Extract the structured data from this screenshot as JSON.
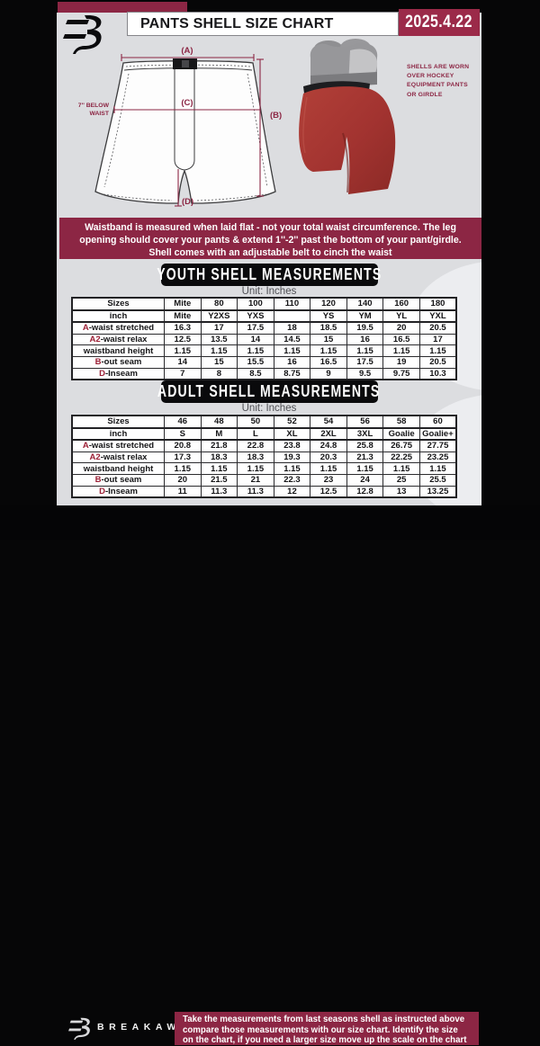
{
  "header": {
    "title": "PANTS SHELL SIZE CHART",
    "date": "2025.4.22"
  },
  "diagram": {
    "label_a": "(A)",
    "label_b": "(B)",
    "label_c": "(C)",
    "label_d": "(D)",
    "waist_note_line1": "7'' BELOW",
    "waist_note_line2": "WAIST"
  },
  "photo_note": {
    "lines": [
      "SHELLS ARE WORN",
      "OVER HOCKEY",
      "EQUIPMENT PANTS",
      "OR GIRDLE"
    ]
  },
  "banner": {
    "lines": [
      "Waistband is measured when laid flat - not your total waist circumference. The leg",
      "opening should cover your pants & extend 1''-2'' past the bottom of your pant/girdle.",
      "Shell comes with an adjustable belt to cinch the waist"
    ]
  },
  "youth": {
    "title": "YOUTH SHELL MEASUREMENTS",
    "unit": "Unit: Inches",
    "table": {
      "sizes_label": "Sizes",
      "inch_label": "inch",
      "sizes": [
        "Mite",
        "80",
        "100",
        "110",
        "120",
        "140",
        "160",
        "180"
      ],
      "inch": [
        "Mite",
        "Y2XS",
        "YXS",
        "",
        "YS",
        "YM",
        "YL",
        "YXL"
      ],
      "rows": [
        {
          "prefix": "A",
          "rest": "-waist stretched",
          "values": [
            "16.3",
            "17",
            "17.5",
            "18",
            "18.5",
            "19.5",
            "20",
            "20.5"
          ]
        },
        {
          "prefix": "A2",
          "rest": "-waist relax",
          "values": [
            "12.5",
            "13.5",
            "14",
            "14.5",
            "15",
            "16",
            "16.5",
            "17"
          ]
        },
        {
          "prefix": "",
          "rest": "waistband height",
          "values": [
            "1.15",
            "1.15",
            "1.15",
            "1.15",
            "1.15",
            "1.15",
            "1.15",
            "1.15"
          ]
        },
        {
          "prefix": "B",
          "rest": "-out seam",
          "values": [
            "14",
            "15",
            "15.5",
            "16",
            "16.5",
            "17.5",
            "19",
            "20.5"
          ]
        },
        {
          "prefix": "D",
          "rest": "-Inseam",
          "values": [
            "7",
            "8",
            "8.5",
            "8.75",
            "9",
            "9.5",
            "9.75",
            "10.3"
          ]
        }
      ]
    }
  },
  "adult": {
    "title": "ADULT SHELL MEASUREMENTS",
    "unit": "Unit: Inches",
    "table": {
      "sizes_label": "Sizes",
      "inch_label": "inch",
      "sizes": [
        "46",
        "48",
        "50",
        "52",
        "54",
        "56",
        "58",
        "60"
      ],
      "inch": [
        "S",
        "M",
        "L",
        "XL",
        "2XL",
        "3XL",
        "Goalie",
        "Goalie+"
      ],
      "rows": [
        {
          "prefix": "A",
          "rest": "-waist stretched",
          "values": [
            "20.8",
            "21.8",
            "22.8",
            "23.8",
            "24.8",
            "25.8",
            "26.75",
            "27.75"
          ]
        },
        {
          "prefix": "A2",
          "rest": "-waist relax",
          "values": [
            "17.3",
            "18.3",
            "18.3",
            "19.3",
            "20.3",
            "21.3",
            "22.25",
            "23.25"
          ]
        },
        {
          "prefix": "",
          "rest": "waistband height",
          "values": [
            "1.15",
            "1.15",
            "1.15",
            "1.15",
            "1.15",
            "1.15",
            "1.15",
            "1.15"
          ]
        },
        {
          "prefix": "B",
          "rest": "-out seam",
          "values": [
            "20",
            "21.5",
            "21",
            "22.3",
            "23",
            "24",
            "25",
            "25.5"
          ]
        },
        {
          "prefix": "D",
          "rest": "-Inseam",
          "values": [
            "11",
            "11.3",
            "11.3",
            "12",
            "12.5",
            "12.8",
            "13",
            "13.25"
          ]
        }
      ]
    }
  },
  "footer": {
    "brand": "BREAKAWAY",
    "lines": [
      "Take the measurements from last seasons shell as instructed above",
      "compare those measurements  with our size chart. Identify the size",
      "on the chart, if you need a larger size move up the scale on the chart"
    ]
  },
  "colors": {
    "maroon": "#8c2644",
    "date_maroon": "#9b2a49",
    "background_gray": "#dcdde0",
    "black": "#060607",
    "table_red_letter": "#9c2036",
    "shell_red": "#a23330"
  }
}
